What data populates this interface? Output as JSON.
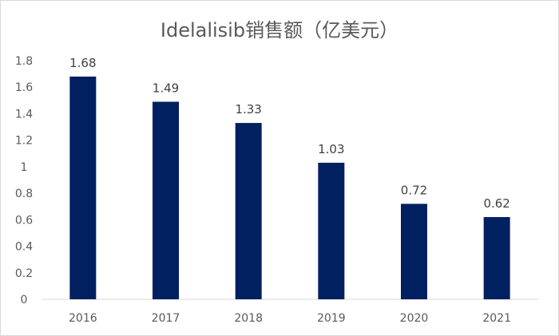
{
  "chart_data": {
    "type": "bar",
    "title": "Idelalisib销售额（亿美元）",
    "categories": [
      "2016",
      "2017",
      "2018",
      "2019",
      "2020",
      "2021"
    ],
    "values": [
      1.68,
      1.49,
      1.33,
      1.03,
      0.72,
      0.62
    ],
    "data_labels": [
      "1.68",
      "1.49",
      "1.33",
      "1.03",
      "0.72",
      "0.62"
    ],
    "ylim": [
      0,
      1.8
    ],
    "yticks": [
      "0",
      "0.2",
      "0.4",
      "0.6",
      "0.8",
      "1",
      "1.2",
      "1.4",
      "1.6",
      "1.8"
    ],
    "xlabel": "",
    "ylabel": "",
    "grid": false,
    "legend": "none",
    "bar_color": "#002060"
  }
}
